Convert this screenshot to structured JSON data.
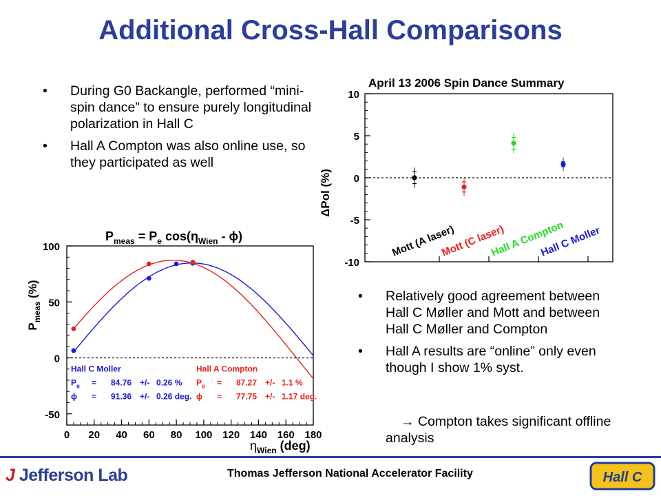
{
  "title": "Additional Cross-Hall Comparisons",
  "left_bullets": [
    {
      "bullet": "•",
      "text": "During G0 Backangle, performed “mini-spin dance” to ensure purely longitudinal polarization in Hall C"
    },
    {
      "bullet": "•",
      "text": "Hall A Compton was also online use, so they participated as well"
    }
  ],
  "right_bullets": [
    {
      "bullet": "•",
      "text": "Relatively good agreement between Hall C Møller and Mott and between Hall C Møller and Compton"
    },
    {
      "bullet": "•",
      "text": "Hall A results are “online” only even though I show 1% syst."
    }
  ],
  "sub_note": {
    "arrow": "→",
    "text": " Compton takes significant offline analysis"
  },
  "footer": {
    "logo_text": "Jefferson Lab",
    "logo_mark": "J",
    "center_text": "Thomas Jefferson National Accelerator Facility",
    "hallc_logo": "Hall C"
  },
  "chart_data": [
    {
      "type": "scatter",
      "title": "April 13 2006 Spin Dance Summary",
      "ylabel": "ΔPol (%)",
      "ylim": [
        -10,
        10
      ],
      "yticks": [
        10,
        5,
        0,
        -5,
        -10
      ],
      "grid": false,
      "reference_line": 0,
      "points": [
        {
          "label": "Mott (A laser)",
          "y": 0,
          "err_stat": 0.7,
          "err_tot": 1.2,
          "color": "#000000"
        },
        {
          "label": "Mott (C laser)",
          "y": -1.1,
          "err_stat": 0.6,
          "err_tot": 1.1,
          "color": "#e8221f"
        },
        {
          "label": "Hall A Compton",
          "y": 4.1,
          "err_stat": 0.7,
          "err_tot": 1.2,
          "color": "#22dd22"
        },
        {
          "label": "Hall C Moller",
          "y": 1.6,
          "err_stat": 0.3,
          "err_tot": 0.8,
          "color": "#1a1ad8"
        }
      ]
    },
    {
      "type": "line",
      "title_parts": {
        "a": "P",
        "a_sub": "meas",
        "b": " = P",
        "b_sub": "e",
        "c": " cos(η",
        "c_sub": "Wien",
        "d": " - ϕ)"
      },
      "ylabel_parts": {
        "a": "P",
        "a_sub": "meas",
        "b": " (%)"
      },
      "xlabel_parts": {
        "a": "η",
        "a_sub": "Wien",
        "b": " (deg)"
      },
      "xlim": [
        0,
        180
      ],
      "ylim": [
        -60,
        100
      ],
      "xticks": [
        0,
        20,
        40,
        60,
        80,
        100,
        120,
        140,
        160,
        180
      ],
      "yticks": [
        100,
        50,
        0,
        -50
      ],
      "reference_line": 0,
      "series": [
        {
          "name": "Hall C Moller",
          "color": "#1a1ad8",
          "amplitude": 84.76,
          "phase": 91.36,
          "points": [
            [
              5,
              6.5
            ],
            [
              60,
              71
            ],
            [
              80,
              84
            ],
            [
              92,
              84.5
            ]
          ],
          "rows": [
            [
              "P",
              "e",
              " =",
              "84.76",
              "+/-",
              "0.26 %"
            ],
            [
              "ϕ",
              "",
              "=",
              "91.36",
              "+/-",
              "0.26 deg."
            ]
          ]
        },
        {
          "name": "Hall A Compton",
          "color": "#e8221f",
          "amplitude": 87.27,
          "phase": 77.75,
          "points": [
            [
              5,
              26
            ],
            [
              60,
              84
            ],
            [
              92,
              85.5
            ]
          ],
          "rows": [
            [
              "P",
              "e",
              " =",
              "87.27",
              "+/-",
              "1.1     %"
            ],
            [
              "ϕ",
              "",
              "=",
              "77.75",
              "+/-",
              "1.17 deg."
            ]
          ]
        }
      ]
    }
  ]
}
